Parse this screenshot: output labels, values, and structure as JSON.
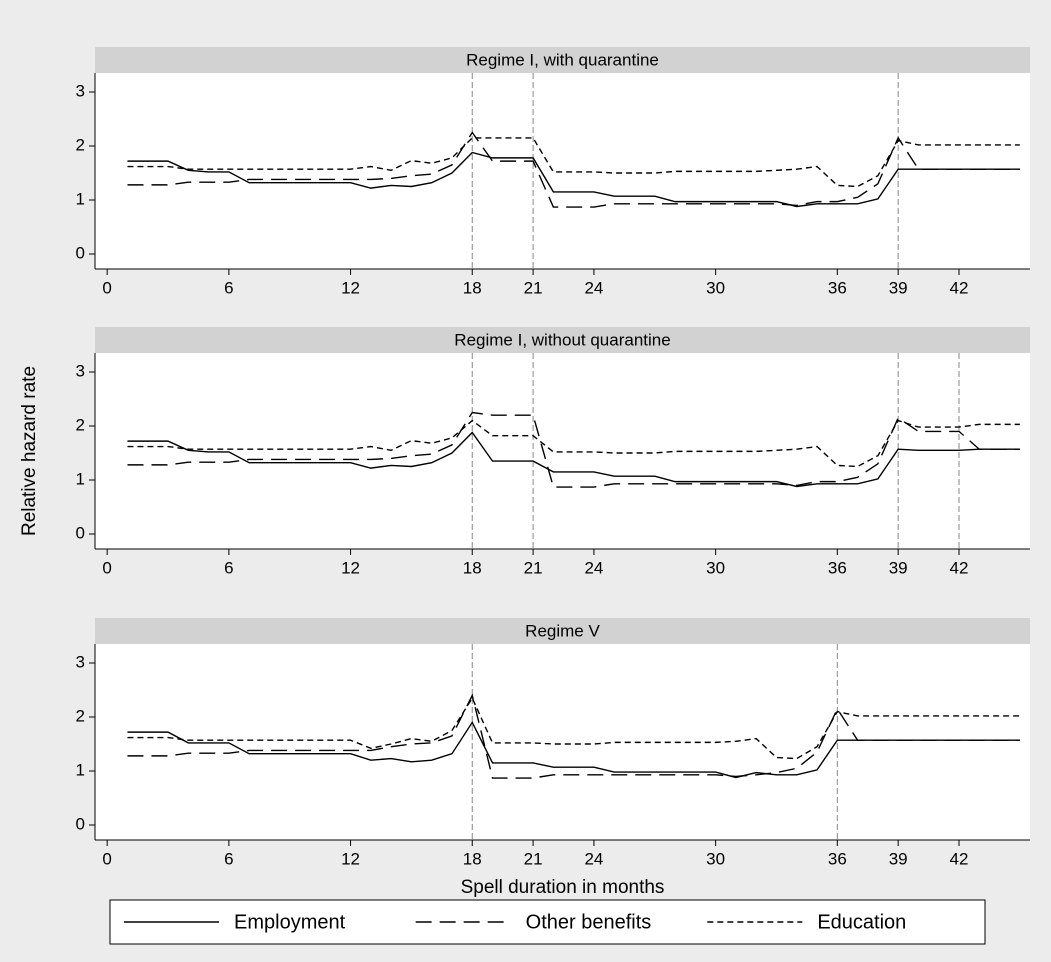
{
  "chart_data": [
    {
      "type": "line",
      "title": "Regime I, with quarantine",
      "x": [
        1,
        2,
        3,
        4,
        5,
        6,
        7,
        8,
        9,
        10,
        11,
        12,
        13,
        14,
        15,
        16,
        17,
        18,
        19,
        20,
        21,
        22,
        23,
        24,
        25,
        26,
        27,
        28,
        29,
        30,
        31,
        32,
        33,
        34,
        35,
        36,
        37,
        38,
        39,
        40,
        41,
        42,
        43,
        44,
        45
      ],
      "series": [
        {
          "name": "Employment",
          "color": "#000000",
          "linestyle": "solid",
          "values": [
            1.72,
            1.72,
            1.72,
            1.55,
            1.52,
            1.52,
            1.32,
            1.32,
            1.32,
            1.32,
            1.32,
            1.32,
            1.22,
            1.27,
            1.25,
            1.32,
            1.5,
            1.88,
            1.78,
            1.78,
            1.78,
            1.15,
            1.15,
            1.15,
            1.07,
            1.07,
            1.07,
            0.97,
            0.97,
            0.97,
            0.97,
            0.97,
            0.97,
            0.88,
            0.93,
            0.93,
            0.93,
            1.02,
            1.57,
            1.57,
            1.57,
            1.57,
            1.57,
            1.57,
            1.57
          ]
        },
        {
          "name": "Other benefits",
          "color": "#000000",
          "linestyle": "longdash",
          "values": [
            1.28,
            1.28,
            1.28,
            1.33,
            1.33,
            1.33,
            1.38,
            1.38,
            1.38,
            1.38,
            1.38,
            1.38,
            1.38,
            1.4,
            1.45,
            1.48,
            1.65,
            2.25,
            1.72,
            1.72,
            1.72,
            0.87,
            0.87,
            0.87,
            0.93,
            0.93,
            0.93,
            0.93,
            0.93,
            0.93,
            0.93,
            0.93,
            0.93,
            0.9,
            0.97,
            0.97,
            1.05,
            1.3,
            2.15,
            1.57,
            1.57,
            1.57,
            1.57,
            1.57,
            1.57
          ]
        },
        {
          "name": "Education",
          "color": "#000000",
          "linestyle": "shortdash",
          "values": [
            1.62,
            1.62,
            1.62,
            1.57,
            1.57,
            1.57,
            1.57,
            1.57,
            1.57,
            1.57,
            1.57,
            1.57,
            1.62,
            1.55,
            1.73,
            1.68,
            1.78,
            2.15,
            2.15,
            2.15,
            2.15,
            1.52,
            1.52,
            1.52,
            1.5,
            1.5,
            1.5,
            1.53,
            1.53,
            1.53,
            1.53,
            1.53,
            1.55,
            1.57,
            1.62,
            1.27,
            1.25,
            1.45,
            2.1,
            2.02,
            2.02,
            2.02,
            2.02,
            2.02,
            2.02
          ]
        }
      ],
      "xlim": [
        -0.6,
        45.5
      ],
      "xticks": [
        0,
        6,
        12,
        18,
        21,
        24,
        30,
        36,
        39,
        42
      ],
      "ylim": [
        -0.2,
        3.1
      ],
      "yticks": [
        0,
        1,
        2,
        3
      ],
      "vlines": [
        18,
        21,
        39
      ]
    },
    {
      "type": "line",
      "title": "Regime I, without quarantine",
      "y_label": "Relative hazard rate",
      "x": [
        1,
        2,
        3,
        4,
        5,
        6,
        7,
        8,
        9,
        10,
        11,
        12,
        13,
        14,
        15,
        16,
        17,
        18,
        19,
        20,
        21,
        22,
        23,
        24,
        25,
        26,
        27,
        28,
        29,
        30,
        31,
        32,
        33,
        34,
        35,
        36,
        37,
        38,
        39,
        40,
        41,
        42,
        43,
        44,
        45
      ],
      "series": [
        {
          "name": "Employment",
          "color": "#000000",
          "linestyle": "solid",
          "values": [
            1.72,
            1.72,
            1.72,
            1.55,
            1.52,
            1.52,
            1.32,
            1.32,
            1.32,
            1.32,
            1.32,
            1.32,
            1.22,
            1.27,
            1.25,
            1.32,
            1.5,
            1.88,
            1.35,
            1.35,
            1.35,
            1.15,
            1.15,
            1.15,
            1.07,
            1.07,
            1.07,
            0.97,
            0.97,
            0.97,
            0.97,
            0.97,
            0.97,
            0.88,
            0.93,
            0.93,
            0.93,
            1.02,
            1.57,
            1.55,
            1.55,
            1.55,
            1.57,
            1.57,
            1.57
          ]
        },
        {
          "name": "Other benefits",
          "color": "#000000",
          "linestyle": "longdash",
          "values": [
            1.28,
            1.28,
            1.28,
            1.33,
            1.33,
            1.33,
            1.38,
            1.38,
            1.38,
            1.38,
            1.38,
            1.38,
            1.38,
            1.4,
            1.45,
            1.48,
            1.65,
            2.25,
            2.2,
            2.2,
            2.2,
            0.87,
            0.87,
            0.87,
            0.93,
            0.93,
            0.93,
            0.93,
            0.93,
            0.93,
            0.93,
            0.93,
            0.93,
            0.9,
            0.97,
            0.97,
            1.05,
            1.3,
            2.15,
            1.9,
            1.9,
            1.9,
            1.57,
            1.57,
            1.57
          ]
        },
        {
          "name": "Education",
          "color": "#000000",
          "linestyle": "shortdash",
          "values": [
            1.62,
            1.62,
            1.62,
            1.57,
            1.57,
            1.57,
            1.57,
            1.57,
            1.57,
            1.57,
            1.57,
            1.57,
            1.62,
            1.55,
            1.73,
            1.68,
            1.78,
            2.1,
            1.82,
            1.82,
            1.82,
            1.52,
            1.52,
            1.52,
            1.5,
            1.5,
            1.5,
            1.53,
            1.53,
            1.53,
            1.53,
            1.53,
            1.55,
            1.57,
            1.62,
            1.27,
            1.25,
            1.45,
            2.1,
            1.98,
            1.98,
            1.98,
            2.03,
            2.03,
            2.03
          ]
        }
      ],
      "xlim": [
        -0.6,
        45.5
      ],
      "xticks": [
        0,
        6,
        12,
        18,
        21,
        24,
        30,
        36,
        39,
        42
      ],
      "ylim": [
        -0.2,
        3.1
      ],
      "yticks": [
        0,
        1,
        2,
        3
      ],
      "vlines": [
        18,
        21,
        39,
        42
      ]
    },
    {
      "type": "line",
      "title": "Regime V",
      "x_label": "Spell duration in months",
      "x": [
        1,
        2,
        3,
        4,
        5,
        6,
        7,
        8,
        9,
        10,
        11,
        12,
        13,
        14,
        15,
        16,
        17,
        18,
        19,
        20,
        21,
        22,
        23,
        24,
        25,
        26,
        27,
        28,
        29,
        30,
        31,
        32,
        33,
        34,
        35,
        36,
        37,
        38,
        39,
        40,
        41,
        42,
        43,
        44,
        45
      ],
      "series": [
        {
          "name": "Employment",
          "color": "#000000",
          "linestyle": "solid",
          "values": [
            1.72,
            1.72,
            1.72,
            1.52,
            1.52,
            1.52,
            1.32,
            1.32,
            1.32,
            1.32,
            1.32,
            1.32,
            1.2,
            1.23,
            1.17,
            1.2,
            1.32,
            1.9,
            1.15,
            1.15,
            1.15,
            1.07,
            1.07,
            1.07,
            0.98,
            0.98,
            0.98,
            0.98,
            0.98,
            0.98,
            0.88,
            0.97,
            0.93,
            0.93,
            1.02,
            1.57,
            1.57,
            1.57,
            1.57,
            1.57,
            1.57,
            1.57,
            1.57,
            1.57,
            1.57
          ]
        },
        {
          "name": "Other benefits",
          "color": "#000000",
          "linestyle": "longdash",
          "values": [
            1.28,
            1.28,
            1.28,
            1.33,
            1.33,
            1.33,
            1.38,
            1.38,
            1.38,
            1.38,
            1.38,
            1.38,
            1.38,
            1.45,
            1.5,
            1.52,
            1.65,
            2.4,
            0.87,
            0.87,
            0.87,
            0.93,
            0.93,
            0.93,
            0.93,
            0.93,
            0.93,
            0.93,
            0.93,
            0.93,
            0.9,
            0.93,
            0.97,
            1.05,
            1.35,
            2.15,
            1.57,
            1.57,
            1.57,
            1.57,
            1.57,
            1.57,
            1.57,
            1.57,
            1.57
          ]
        },
        {
          "name": "Education",
          "color": "#000000",
          "linestyle": "shortdash",
          "values": [
            1.62,
            1.62,
            1.62,
            1.57,
            1.57,
            1.57,
            1.57,
            1.57,
            1.57,
            1.57,
            1.57,
            1.57,
            1.42,
            1.5,
            1.6,
            1.55,
            1.75,
            2.35,
            1.52,
            1.52,
            1.52,
            1.5,
            1.5,
            1.5,
            1.53,
            1.53,
            1.53,
            1.53,
            1.53,
            1.53,
            1.55,
            1.6,
            1.25,
            1.23,
            1.45,
            2.1,
            2.02,
            2.02,
            2.02,
            2.02,
            2.02,
            2.02,
            2.02,
            2.02,
            2.02
          ]
        }
      ],
      "xlim": [
        -0.6,
        45.5
      ],
      "xticks": [
        0,
        6,
        12,
        18,
        21,
        24,
        30,
        36,
        39,
        42
      ],
      "ylim": [
        -0.2,
        3.1
      ],
      "yticks": [
        0,
        1,
        2,
        3
      ],
      "vlines": [
        18,
        36
      ]
    }
  ]
}
